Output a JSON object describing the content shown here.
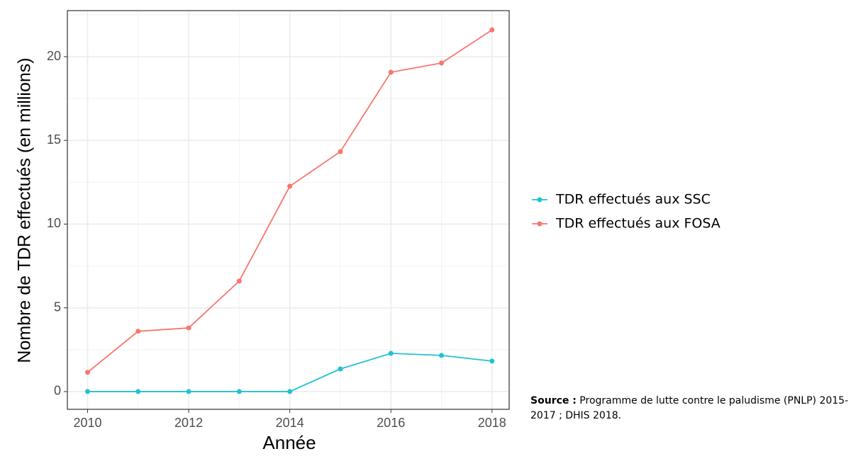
{
  "chart_data": {
    "type": "line",
    "x_label": "Année",
    "y_label": "Nombre de TDR effectués (en millions)",
    "x": [
      2010,
      2011,
      2012,
      2013,
      2014,
      2015,
      2016,
      2017,
      2018
    ],
    "series": [
      {
        "name": "TDR effectués aux SSC",
        "color": "#1fc3cf",
        "values": [
          0,
          0,
          0,
          0,
          0,
          1.35,
          2.28,
          2.16,
          1.82
        ]
      },
      {
        "name": "TDR effectués aux FOSA",
        "color": "#f8766d",
        "values": [
          1.15,
          3.6,
          3.8,
          6.6,
          12.26,
          14.33,
          19.07,
          19.62,
          21.6
        ]
      }
    ],
    "xlim": [
      2009.6,
      2018.34
    ],
    "xticks": [
      2010,
      2012,
      2014,
      2016,
      2018
    ],
    "ylim": [
      -1.06,
      22.75
    ],
    "yticks": [
      0,
      5,
      10,
      15,
      20
    ],
    "grid": true,
    "legend_position": "right",
    "source_label": "Source :",
    "source_text": "Programme de lutte contre le paludisme (PNLP) 2015-2017 ; DHIS 2018."
  }
}
